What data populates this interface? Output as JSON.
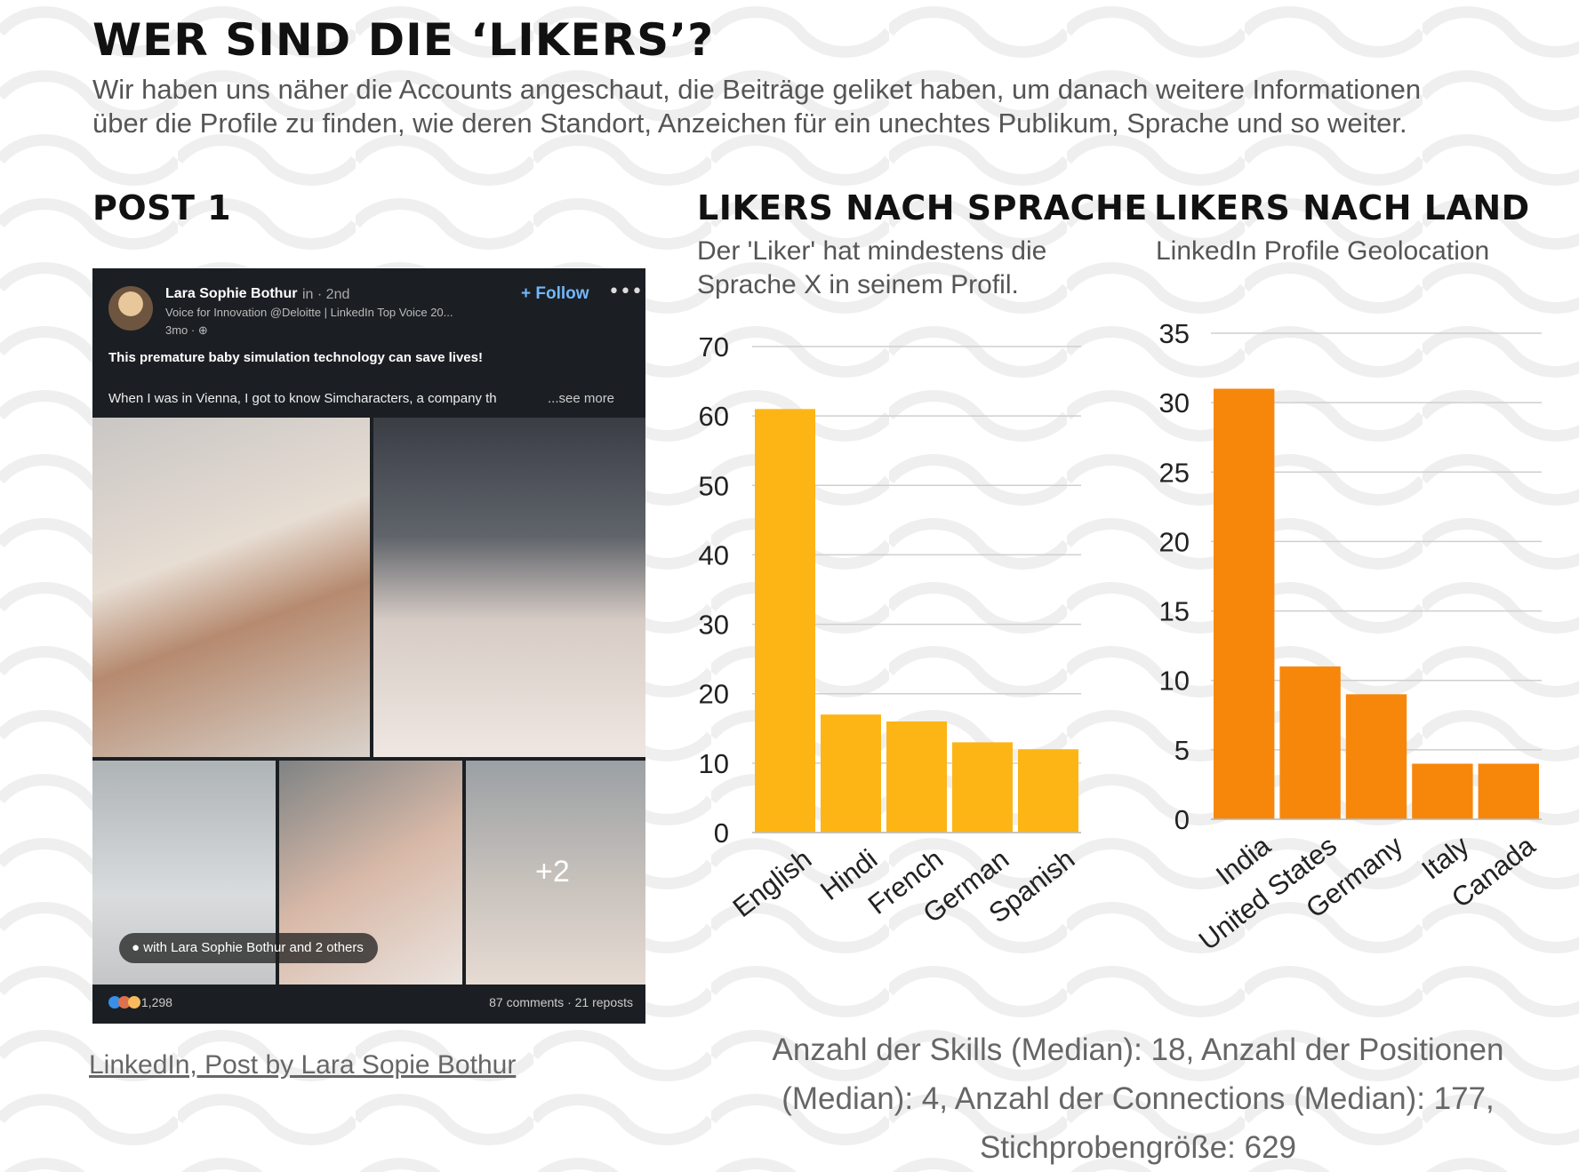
{
  "page": {
    "title": "WER SIND DIE ‘LIKERS’?",
    "intro_line1": "Wir haben uns näher die Accounts angeschaut, die Beiträge geliket haben, um danach weitere Informationen",
    "intro_line2": "über die Profile zu finden, wie deren Standort, Anzeichen für ein unechtes Publikum, Sprache und so weiter.",
    "post_heading": "POST 1",
    "source_link": "LinkedIn, Post by Lara Sopie Bothur",
    "footer_line1": "Anzahl der Skills (Median): 18, Anzahl der Positionen",
    "footer_line2": "(Median): 4, Anzahl der Connections (Median): 177,",
    "footer_line3": "Stichprobengröße: 629"
  },
  "post": {
    "author": "Lara Sophie Bothur",
    "badge": "in · 2nd",
    "tagline": "Voice for Innovation @Deloitte | LinkedIn Top Voice 20...",
    "time": "3mo · ⊕",
    "follow_label": "+ Follow",
    "more_label": "•••",
    "headline": "This premature baby simulation technology can save lives!",
    "body": "When I was in Vienna, I got to know Simcharacters, a company th",
    "see_more": "...see more",
    "extra_photos": "+2",
    "with_tag": "with Lara Sophie Bothur and 2 others",
    "reactions": "1,298",
    "stats": "87 comments · 21 reposts"
  },
  "chart_data": [
    {
      "type": "bar",
      "title": "LIKERS NACH SPRACHE",
      "subtitle_line1": "Der 'Liker' hat mindestens die",
      "subtitle_line2": "Sprache X in seinem Profil.",
      "categories": [
        "English",
        "Hindi",
        "French",
        "German",
        "Spanish"
      ],
      "values": [
        61,
        17,
        16,
        13,
        12
      ],
      "ylim": [
        0,
        70
      ],
      "yticks": [
        0,
        10,
        20,
        30,
        40,
        50,
        60,
        70
      ],
      "grid": true,
      "color": "#fdb515"
    },
    {
      "type": "bar",
      "title": "LIKERS NACH LAND",
      "subtitle_line1": "LinkedIn Profile Geolocation",
      "categories": [
        "India",
        "United States",
        "Germany",
        "Italy",
        "Canada"
      ],
      "values": [
        31,
        11,
        9,
        4,
        4
      ],
      "ylim": [
        0,
        35
      ],
      "yticks": [
        0,
        5,
        10,
        15,
        20,
        25,
        30,
        35
      ],
      "grid": true,
      "color": "#f7870a"
    }
  ]
}
